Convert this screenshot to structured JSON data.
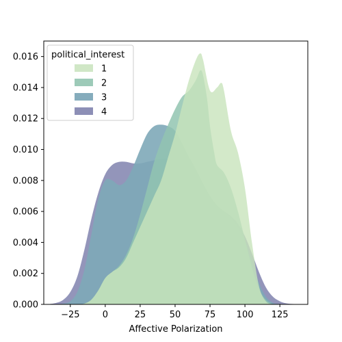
{
  "chart_data": {
    "type": "area",
    "title": "",
    "xlabel": "Affective Polarization",
    "ylabel": "",
    "xlim": [
      -44,
      145
    ],
    "ylim": [
      0,
      0.017
    ],
    "xticks": [
      -25,
      0,
      25,
      50,
      75,
      100,
      125
    ],
    "xtick_labels": [
      "−25",
      "0",
      "25",
      "50",
      "75",
      "100",
      "125"
    ],
    "yticks": [
      0,
      0.002,
      0.004,
      0.006,
      0.008,
      0.01,
      0.012,
      0.014,
      0.016
    ],
    "ytick_labels": [
      "0.000",
      "0.002",
      "0.004",
      "0.006",
      "0.008",
      "0.010",
      "0.012",
      "0.014",
      "0.016"
    ],
    "grid": false,
    "legend": {
      "title": "political_interest",
      "placement": "top-left"
    },
    "series": [
      {
        "name": "4",
        "color": "#8d8fb6",
        "x": [
          -40,
          -35,
          -30,
          -25,
          -20,
          -15,
          -10,
          -5,
          0,
          5,
          10,
          15,
          20,
          25,
          30,
          35,
          40,
          45,
          50,
          55,
          60,
          65,
          70,
          75,
          80,
          85,
          90,
          95,
          100,
          105,
          110,
          115,
          120,
          125,
          130,
          135,
          140
        ],
        "y": [
          2e-05,
          0.0001,
          0.0003,
          0.0008,
          0.0018,
          0.0035,
          0.0055,
          0.0072,
          0.0084,
          0.009,
          0.0092,
          0.0092,
          0.0091,
          0.0091,
          0.0092,
          0.0093,
          0.0094,
          0.0094,
          0.0093,
          0.009,
          0.0084,
          0.0078,
          0.0071,
          0.0065,
          0.0062,
          0.006,
          0.0057,
          0.0052,
          0.0044,
          0.0033,
          0.0021,
          0.0011,
          0.0005,
          0.0002,
          6e-05,
          2e-05,
          0.0
        ],
        "opacity": 0.95
      },
      {
        "name": "3",
        "color": "#7ea8b8",
        "x": [
          -40,
          -35,
          -30,
          -25,
          -20,
          -15,
          -10,
          -5,
          0,
          5,
          10,
          15,
          20,
          25,
          30,
          35,
          40,
          45,
          50,
          55,
          60,
          65,
          70,
          75,
          80,
          85,
          90,
          95,
          100,
          105,
          110,
          115,
          120,
          125,
          130
        ],
        "y": [
          0.0,
          0.0,
          5e-05,
          0.0002,
          0.0008,
          0.0022,
          0.0045,
          0.0068,
          0.008,
          0.008,
          0.0077,
          0.008,
          0.0089,
          0.01,
          0.011,
          0.0115,
          0.0116,
          0.0115,
          0.0112,
          0.0104,
          0.0095,
          0.0087,
          0.0078,
          0.007,
          0.0064,
          0.006,
          0.0056,
          0.005,
          0.0041,
          0.0028,
          0.0014,
          0.0005,
          0.0001,
          2e-05,
          0.0
        ],
        "opacity": 0.9
      },
      {
        "name": "2",
        "color": "#92c4b0",
        "x": [
          -20,
          -15,
          -10,
          -5,
          0,
          5,
          10,
          15,
          20,
          25,
          30,
          35,
          40,
          45,
          50,
          55,
          60,
          65,
          68,
          70,
          73,
          75,
          78,
          80,
          85,
          90,
          95,
          100,
          105,
          110,
          115,
          120
        ],
        "y": [
          0.0,
          5e-05,
          0.0003,
          0.0009,
          0.0017,
          0.0021,
          0.0025,
          0.0032,
          0.0043,
          0.0058,
          0.0075,
          0.0092,
          0.0105,
          0.0116,
          0.0126,
          0.0134,
          0.0138,
          0.0145,
          0.0151,
          0.0148,
          0.0132,
          0.0115,
          0.0098,
          0.009,
          0.0085,
          0.0075,
          0.006,
          0.0042,
          0.0024,
          0.001,
          0.0003,
          0.0
        ],
        "opacity": 0.85
      },
      {
        "name": "1",
        "color": "#c8e3bc",
        "x": [
          -20,
          -15,
          -10,
          -5,
          0,
          5,
          10,
          15,
          20,
          25,
          30,
          35,
          40,
          45,
          50,
          55,
          60,
          65,
          68,
          70,
          75,
          80,
          83,
          85,
          90,
          95,
          100,
          105,
          110,
          115,
          120
        ],
        "y": [
          0.0,
          5e-05,
          0.0003,
          0.0009,
          0.0017,
          0.0021,
          0.0024,
          0.003,
          0.004,
          0.005,
          0.006,
          0.007,
          0.008,
          0.0095,
          0.011,
          0.0128,
          0.0145,
          0.0158,
          0.0162,
          0.0158,
          0.0138,
          0.014,
          0.0143,
          0.0138,
          0.0112,
          0.0098,
          0.0075,
          0.004,
          0.0012,
          0.0002,
          0.0
        ],
        "opacity": 0.8
      }
    ],
    "legend_order": [
      "1",
      "2",
      "3",
      "4"
    ],
    "overlap_color": "#7aab94"
  }
}
